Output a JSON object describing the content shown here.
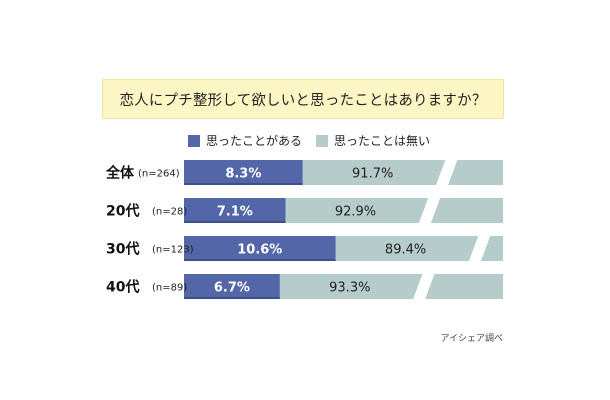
{
  "title": "恋人にプチ整形して欲しいと思ったことはありますか？",
  "credit": "アイシェア調べ",
  "colors": {
    "yes": "#5266a8",
    "no": "#b6cccb",
    "title_bg": "#fcf6c4"
  },
  "chart_data": {
    "type": "bar",
    "stacked": true,
    "orientation": "horizontal",
    "axis_break": true,
    "categories": [
      "全体",
      "20代",
      "30代",
      "40代"
    ],
    "sample_sizes": [
      "(n=264)",
      "(n=28)",
      "(n=123)",
      "(n=89)"
    ],
    "series": [
      {
        "name": "思ったことがある",
        "values": [
          8.3,
          7.1,
          10.6,
          6.7
        ],
        "labels": [
          "8.3%",
          "7.1%",
          "10.6%",
          "6.7%"
        ]
      },
      {
        "name": "思ったことは無い",
        "values": [
          91.7,
          92.9,
          89.4,
          93.3
        ],
        "labels": [
          "91.7%",
          "92.9%",
          "89.4%",
          "93.3%"
        ]
      }
    ]
  }
}
